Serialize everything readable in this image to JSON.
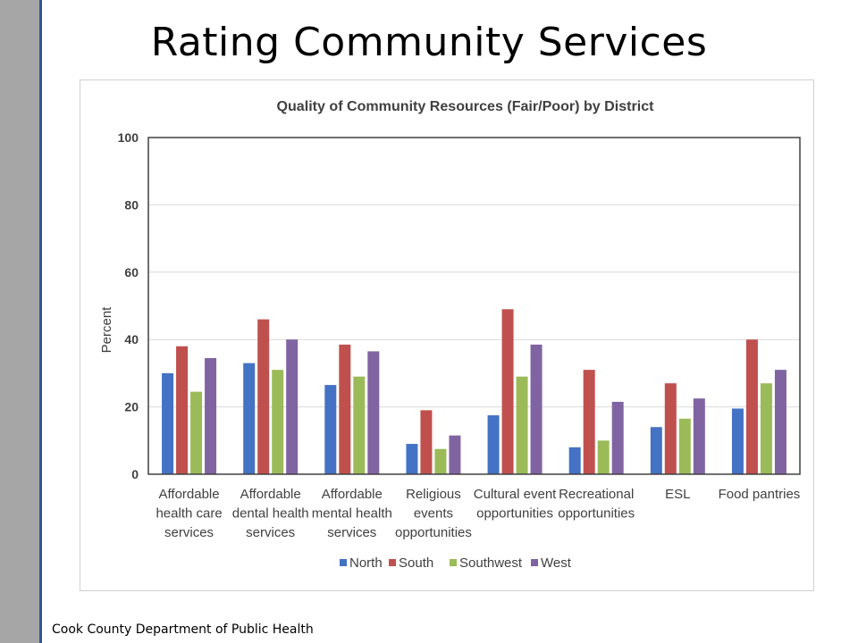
{
  "slide": {
    "title": "Rating Community Services",
    "footer": "Cook County Department of Public Health"
  },
  "chart_data": {
    "type": "bar",
    "title": "Quality of Community Resources (Fair/Poor) by District",
    "xlabel": "",
    "ylabel": "Percent",
    "ylim": [
      0,
      100
    ],
    "yticks": [
      0,
      20,
      40,
      60,
      80,
      100
    ],
    "grid": true,
    "legend_position": "bottom",
    "categories": [
      [
        "Affordable",
        "health care",
        "services"
      ],
      [
        "Affordable",
        "dental health",
        "services"
      ],
      [
        "Affordable",
        "mental health",
        "services"
      ],
      [
        "Religious",
        "events",
        "opportunities"
      ],
      [
        "Cultural event",
        "opportunities"
      ],
      [
        "Recreational",
        "opportunities"
      ],
      [
        "ESL"
      ],
      [
        "Food pantries"
      ]
    ],
    "series": [
      {
        "name": "North",
        "color": "#4472c4",
        "values": [
          30,
          33,
          26.5,
          9,
          17.5,
          8,
          14,
          19.5
        ]
      },
      {
        "name": "South",
        "color": "#c0504d",
        "values": [
          38,
          46,
          38.5,
          19,
          49,
          31,
          27,
          40
        ]
      },
      {
        "name": "Southwest",
        "color": "#9bbb59",
        "values": [
          24.5,
          31,
          29,
          7.5,
          29,
          10,
          16.5,
          27
        ]
      },
      {
        "name": "West",
        "color": "#8064a2",
        "values": [
          34.5,
          40,
          36.5,
          11.5,
          38.5,
          21.5,
          22.5,
          31
        ]
      }
    ]
  }
}
